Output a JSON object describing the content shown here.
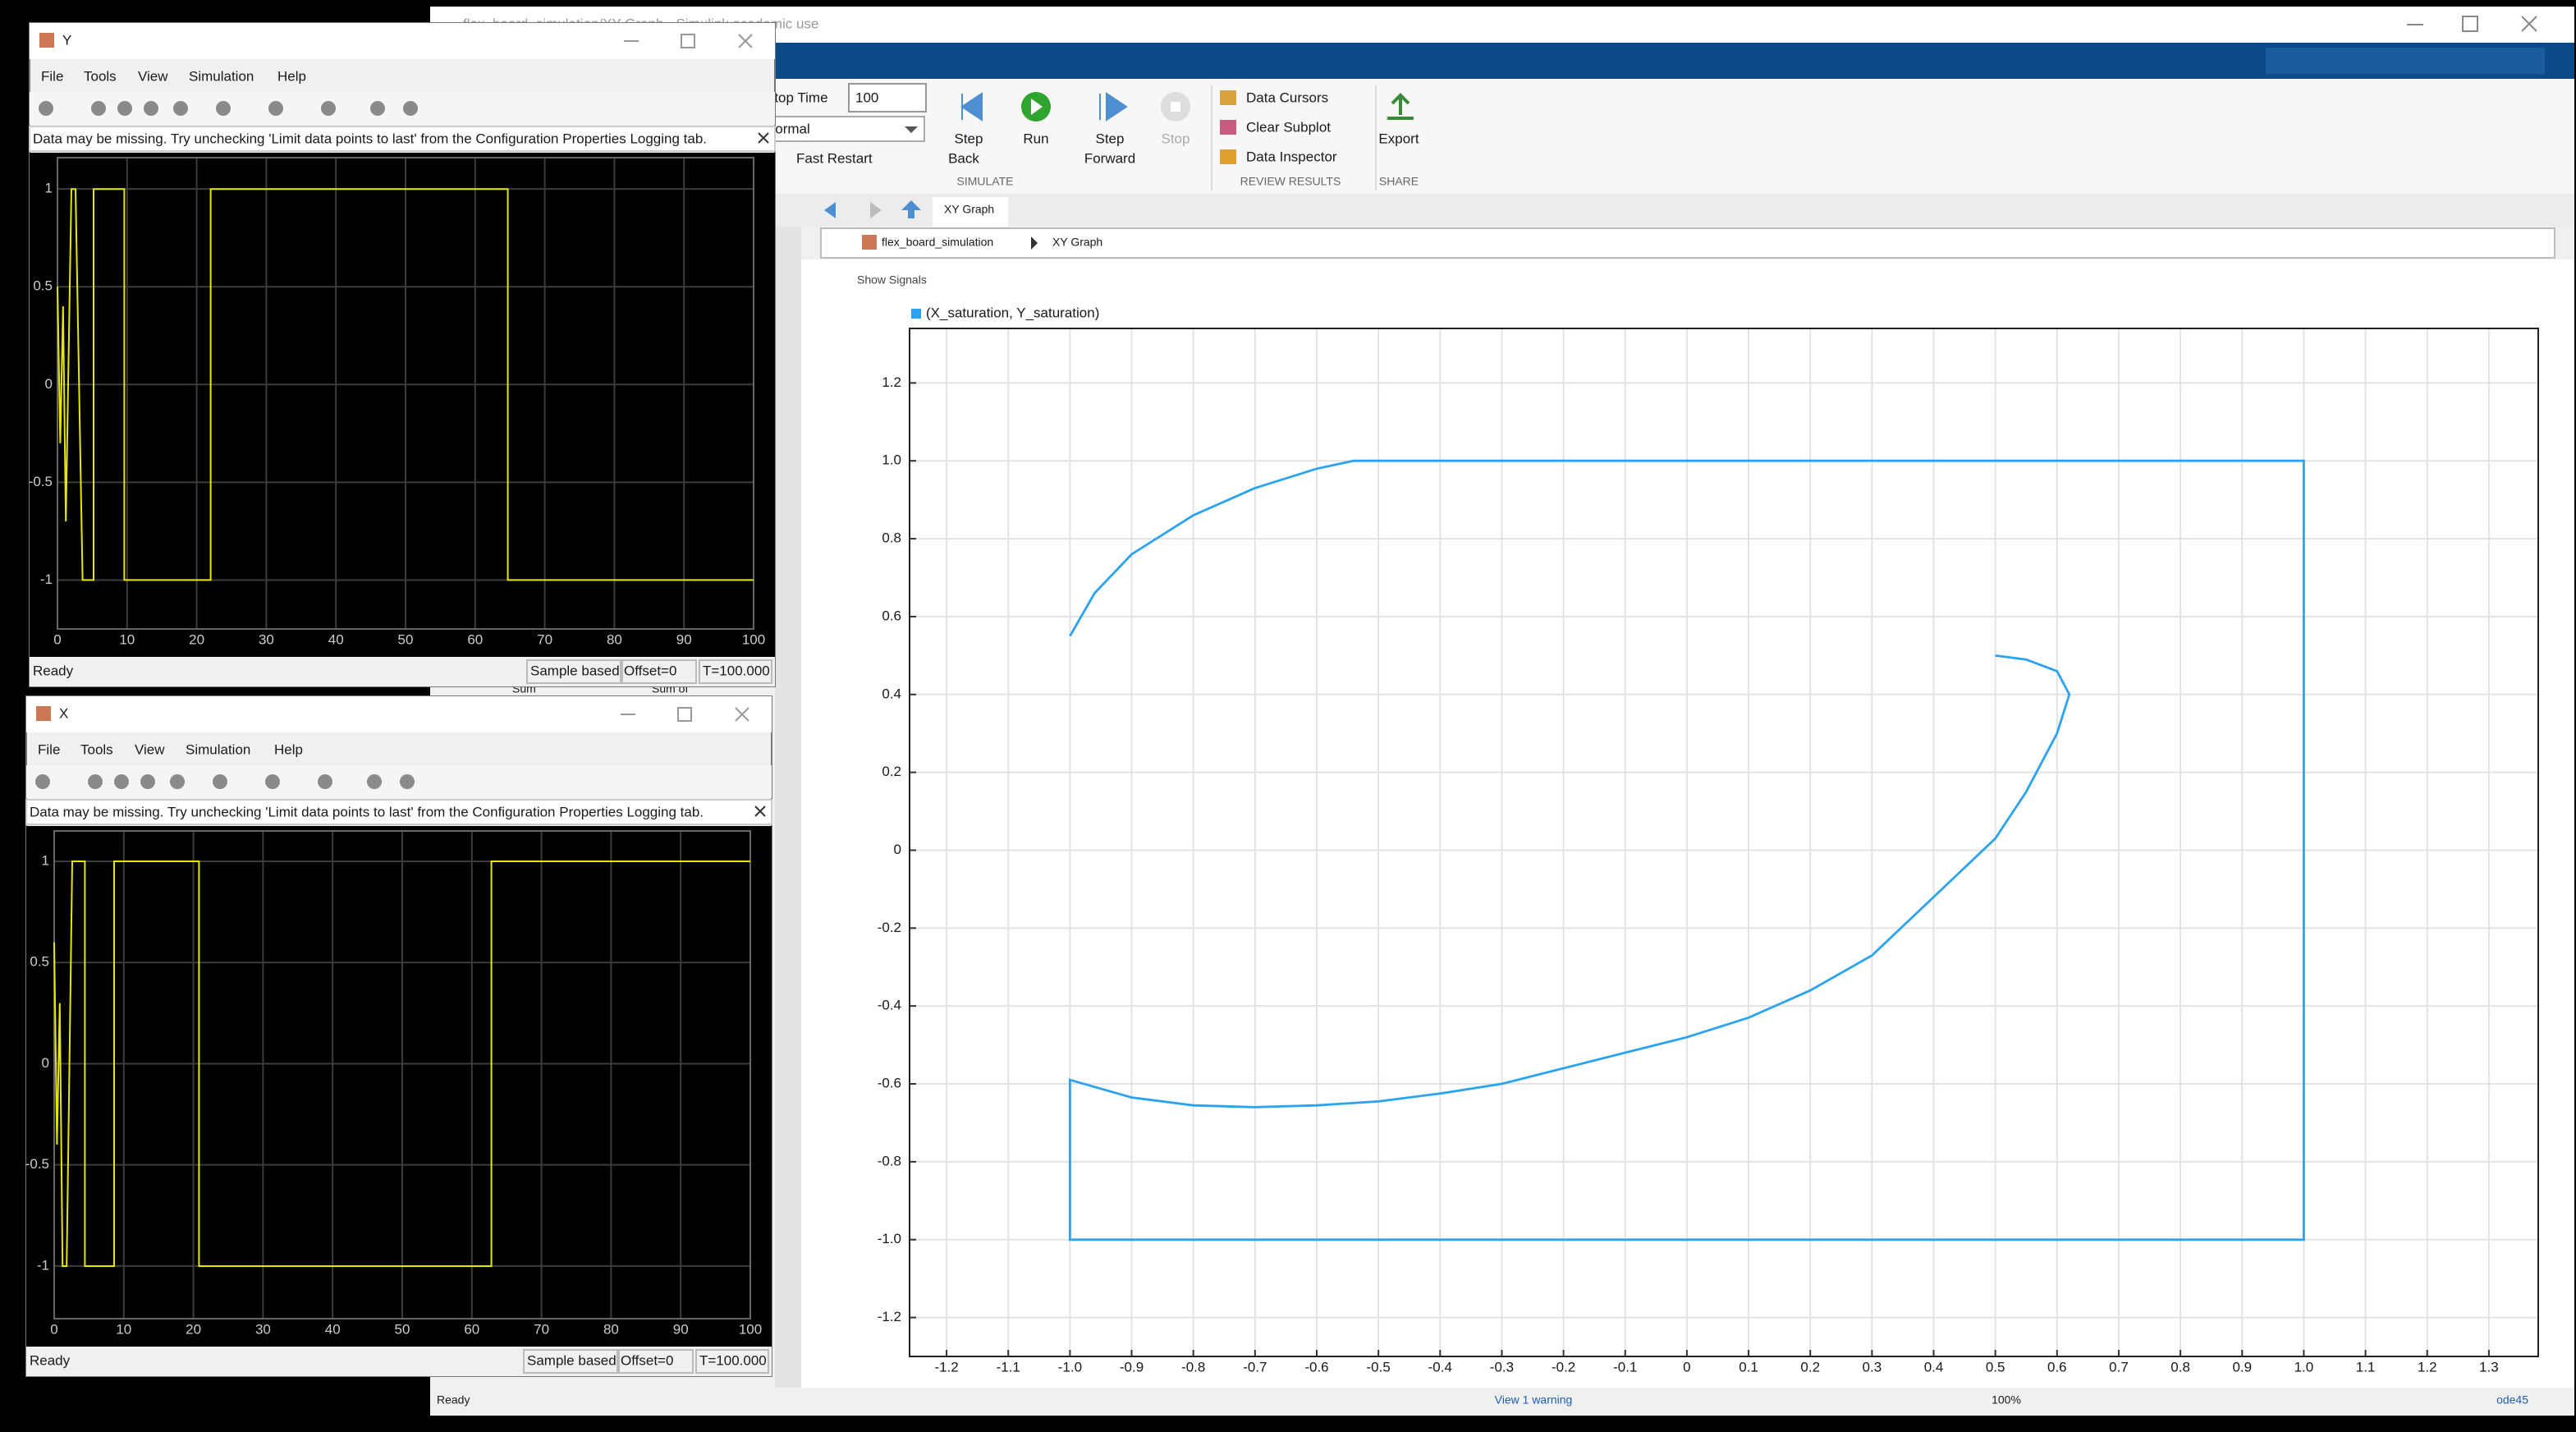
{
  "main_window": {
    "title": "flex_board_simulation/XY Graph - Simulink academic use",
    "toolstrip": {
      "stop_time_label": "Stop Time",
      "stop_time": "100",
      "mode": "Normal",
      "fast_restart": "Fast Restart",
      "step_back": [
        "Step",
        "Back"
      ],
      "run": "Run",
      "step_forward": [
        "Step",
        "Forward"
      ],
      "stop": "Stop",
      "simulate": "SIMULATE",
      "data_cursors": "Data Cursors",
      "clear_subplot": "Clear Subplot",
      "data_inspector": "Data Inspector",
      "review_results": "REVIEW RESULTS",
      "export": "Export",
      "share": "SHARE"
    },
    "tab": "XY Graph",
    "breadcrumb": [
      "flex_board_simulation",
      "XY Graph"
    ],
    "show_signals": "Show Signals",
    "status": {
      "left": "Ready",
      "warning": "View 1 warning",
      "zoom": "100%",
      "solver": "ode45"
    }
  },
  "background_labels": [
    "Sum",
    "Sum of"
  ],
  "xy_graph": {
    "xlim": [
      -1.26,
      1.38
    ],
    "ylim": [
      -1.3,
      1.34
    ],
    "grid": true,
    "xticks": [
      -1.2,
      -1.1,
      {
        "value": -1,
        "label": "-1.0"
      },
      -0.9,
      -0.8,
      -0.7,
      -0.6,
      -0.5,
      -0.4,
      -0.3,
      -0.2,
      -0.1,
      0,
      0.1,
      0.2,
      0.3,
      0.4,
      0.5,
      0.6,
      0.7,
      0.8,
      0.9,
      {
        "value": 1,
        "label": "1.0"
      },
      1.1,
      1.2,
      1.3
    ],
    "yticks": [
      1.2,
      {
        "value": 1,
        "label": "1.0"
      },
      0.8,
      0.6,
      0.4,
      0.2,
      0,
      -0.2,
      -0.4,
      -0.6,
      -0.8,
      {
        "value": -1,
        "label": "-1.0"
      },
      -1.2
    ],
    "series": [
      {
        "name": "(X_saturation, Y_saturation)",
        "color": "#2ba3f0",
        "x": [
          0.5,
          0.55,
          0.6,
          0.62,
          0.6,
          0.55,
          0.5,
          0.4,
          0.3,
          0.2,
          0.1,
          0,
          -0.1,
          -0.2,
          -0.3,
          -0.4,
          -0.5,
          -0.6,
          -0.7,
          -0.8,
          -0.9,
          -1,
          -1,
          1,
          1,
          -0.54,
          -0.6,
          -0.7,
          -0.8,
          -0.9,
          -0.96,
          -1
        ],
        "y": [
          0.5,
          0.49,
          0.46,
          0.4,
          0.3,
          0.15,
          0.03,
          -0.12,
          -0.27,
          -0.36,
          -0.43,
          -0.48,
          -0.52,
          -0.56,
          -0.6,
          -0.625,
          -0.645,
          -0.655,
          -0.66,
          -0.655,
          -0.635,
          -0.59,
          -1,
          -1,
          1,
          1,
          0.98,
          0.93,
          0.86,
          0.76,
          0.66,
          0.55
        ]
      }
    ]
  },
  "scope_y": {
    "title": "Y",
    "menu": [
      "File",
      "Tools",
      "View",
      "Simulation",
      "Help"
    ],
    "warning": "Data may be missing.  Try unchecking 'Limit data points to last' from the Configuration Properties Logging tab.",
    "status": [
      "Ready",
      "Sample based",
      "Offset=0",
      "T=100.000"
    ],
    "xlim": [
      0,
      100
    ],
    "ylim": [
      -1.25,
      1.16
    ],
    "xticks": [
      0,
      10,
      20,
      30,
      40,
      50,
      60,
      70,
      80,
      90,
      100
    ],
    "yticks": [
      1,
      0.5,
      0,
      -0.5,
      -1
    ],
    "color": "#e6e600",
    "series": {
      "x": [
        0,
        0.4,
        0.8,
        1.2,
        2.0,
        2.6,
        3.6,
        5.2,
        5.2,
        9.6,
        9.6,
        22,
        22,
        64.7,
        64.7,
        100
      ],
      "values": [
        0.5,
        -0.3,
        0.4,
        -0.7,
        1,
        1,
        -1,
        -1,
        1,
        1,
        -1,
        -1,
        1,
        1,
        -1,
        -1
      ]
    }
  },
  "scope_x": {
    "title": "X",
    "menu": [
      "File",
      "Tools",
      "View",
      "Simulation",
      "Help"
    ],
    "warning": "Data may be missing.  Try unchecking 'Limit data points to last' from the Configuration Properties Logging tab.",
    "status": [
      "Ready",
      "Sample based",
      "Offset=0",
      "T=100.000"
    ],
    "xlim": [
      0,
      100
    ],
    "ylim": [
      -1.26,
      1.15
    ],
    "xticks": [
      0,
      10,
      20,
      30,
      40,
      50,
      60,
      70,
      80,
      90,
      100
    ],
    "yticks": [
      1,
      0.5,
      0,
      -0.5,
      -1
    ],
    "color": "#e6e600",
    "series": {
      "x": [
        0,
        0.4,
        0.8,
        1.2,
        1.8,
        2.6,
        4.4,
        4.4,
        8.6,
        8.6,
        20.8,
        20.8,
        62.8,
        62.8,
        100
      ],
      "values": [
        0.6,
        -0.4,
        0.3,
        -1,
        -1,
        1,
        1,
        -1,
        -1,
        1,
        1,
        -1,
        -1,
        1,
        1
      ]
    }
  }
}
